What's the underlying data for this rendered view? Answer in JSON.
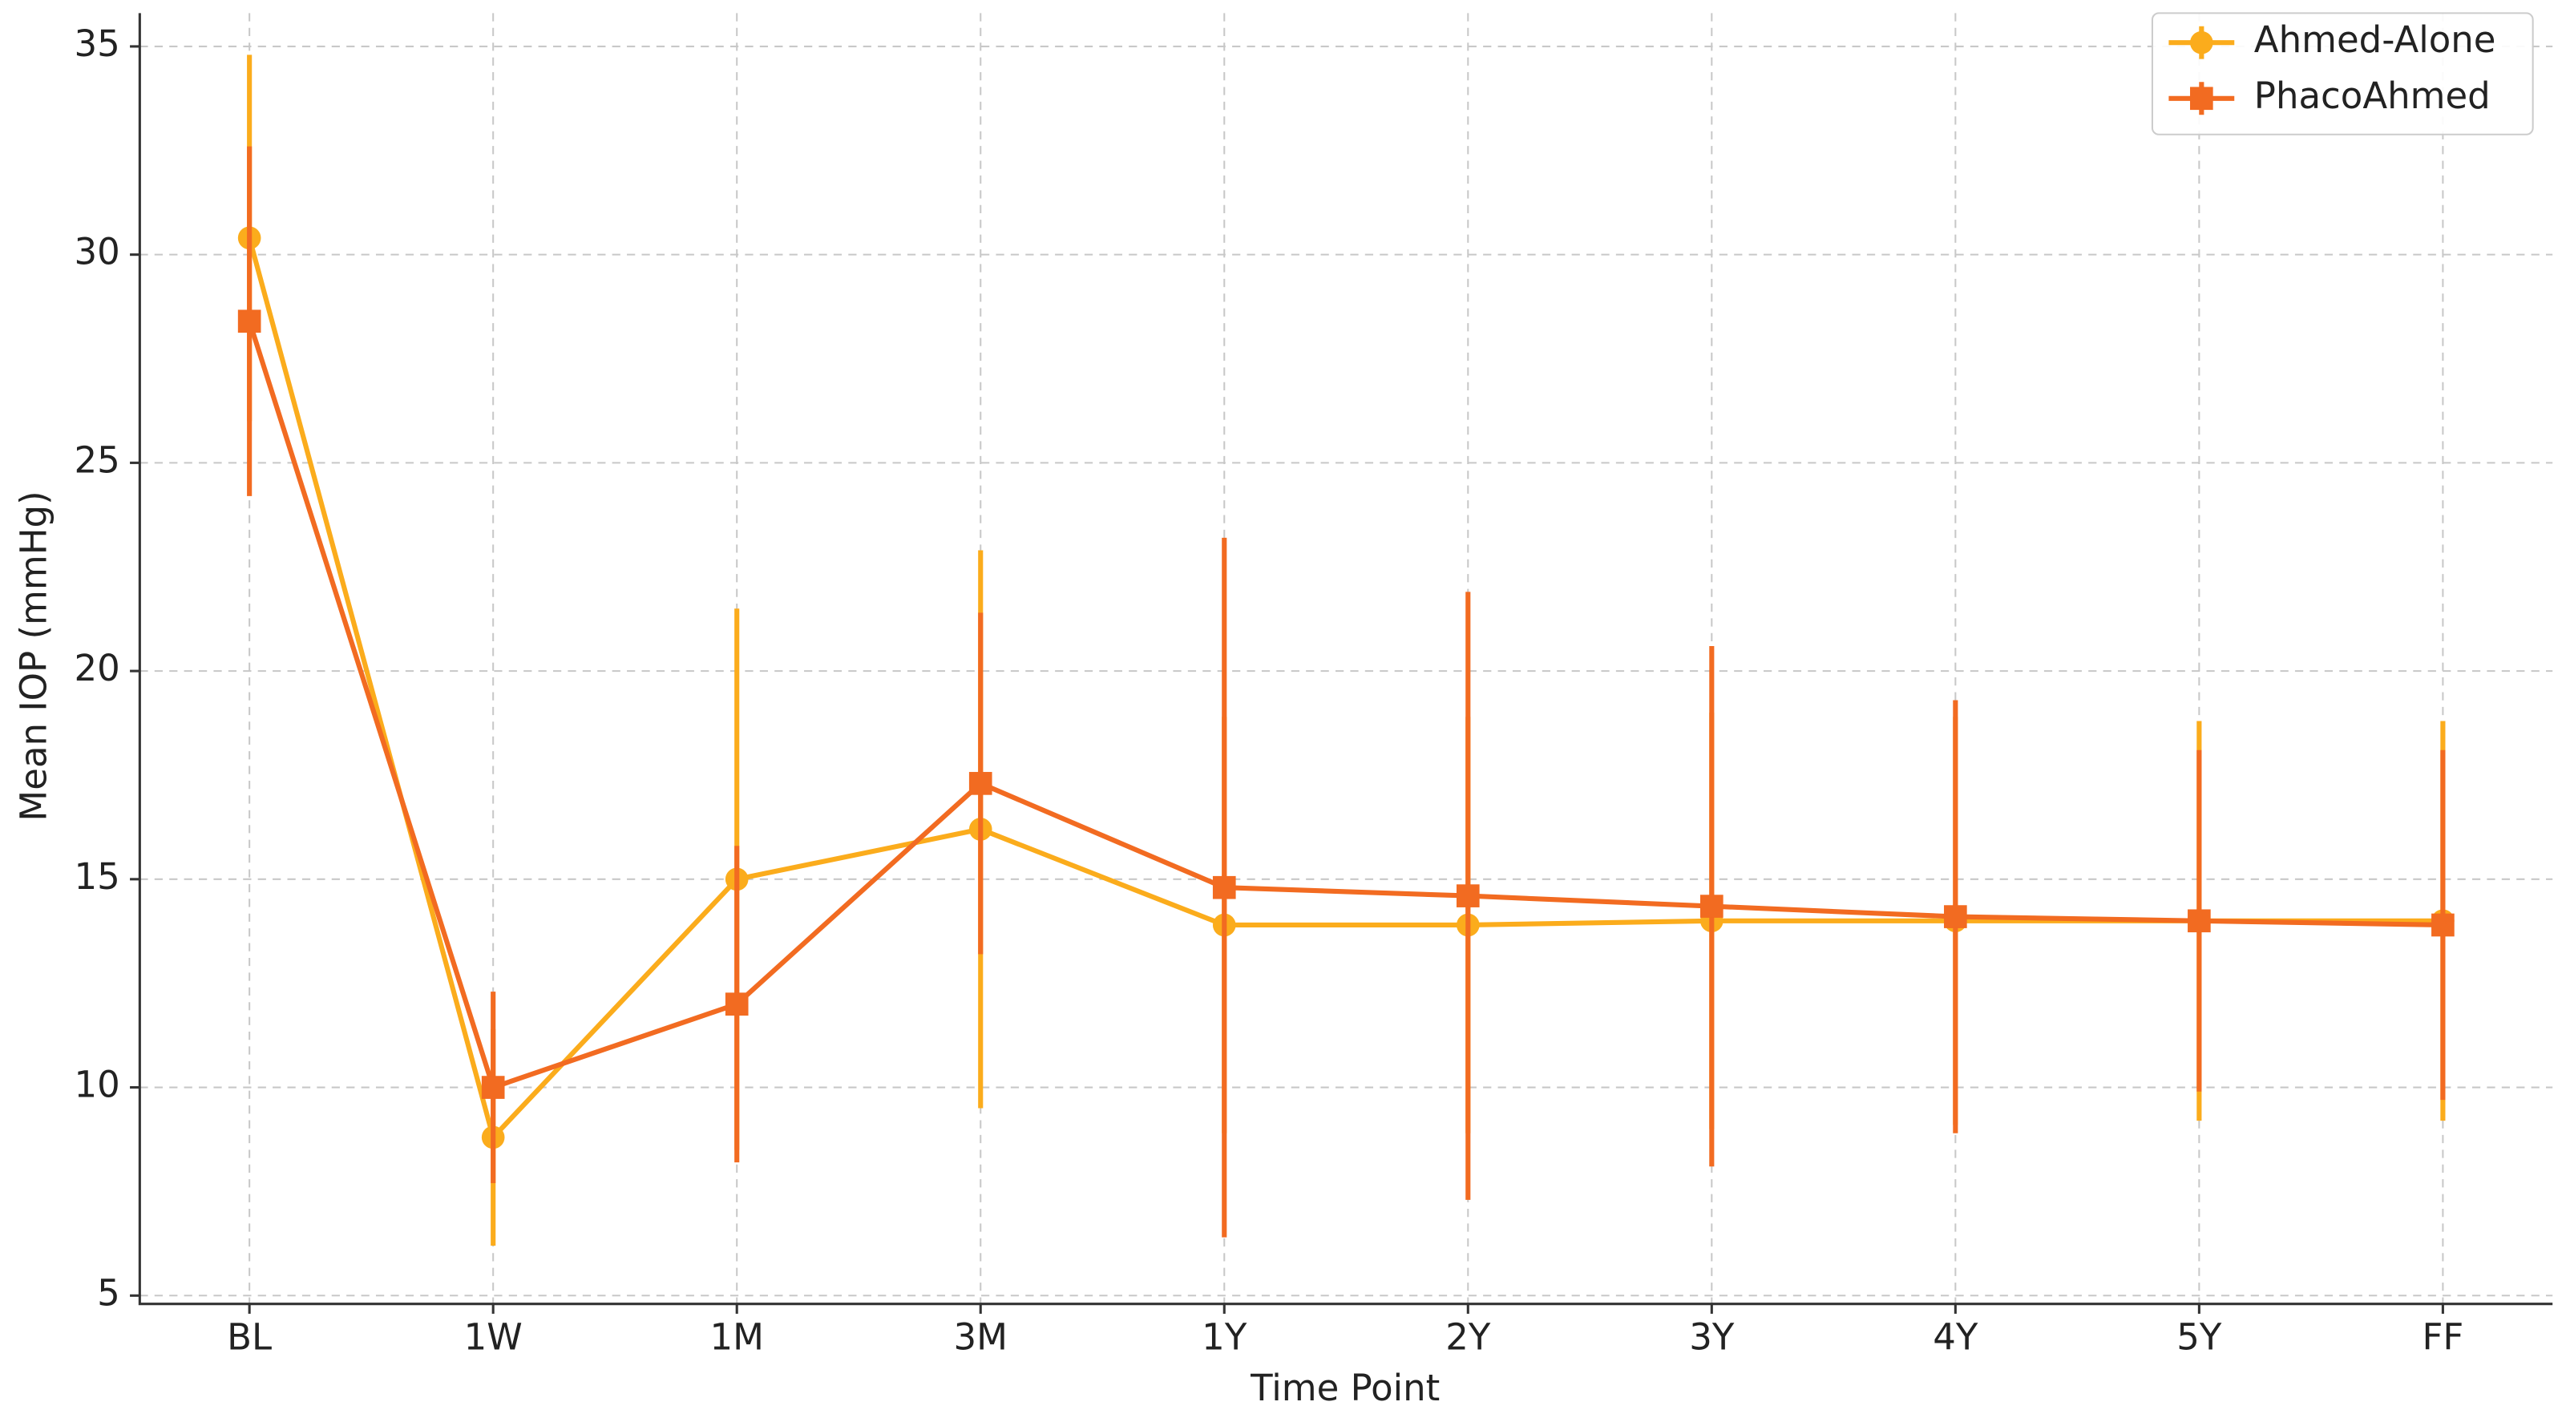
{
  "chart_data": {
    "type": "line",
    "x_label": "Time Point",
    "y_label": "Mean IOP (mmHg)",
    "categories": [
      "BL",
      "1W",
      "1M",
      "3M",
      "1Y",
      "2Y",
      "3Y",
      "4Y",
      "5Y",
      "FF"
    ],
    "series": [
      {
        "name": "Ahmed-Alone",
        "color": "#fbac1c",
        "marker": "circle",
        "values": [
          30.4,
          8.8,
          15.0,
          16.2,
          13.9,
          13.9,
          14.0,
          14.0,
          14.0,
          14.0
        ],
        "errors": [
          4.4,
          2.6,
          6.5,
          6.7,
          5.0,
          5.0,
          5.0,
          4.9,
          4.8,
          4.8
        ]
      },
      {
        "name": "PhacoAhmed",
        "color": "#f26b21",
        "marker": "square",
        "values": [
          28.4,
          10.0,
          12.0,
          17.3,
          14.8,
          14.6,
          14.35,
          14.1,
          14.0,
          13.9
        ],
        "errors": [
          4.2,
          2.3,
          3.8,
          4.1,
          8.4,
          7.3,
          6.25,
          5.2,
          4.1,
          4.2
        ]
      }
    ],
    "ylim": [
      4.8,
      35.8
    ],
    "yticks": [
      5,
      10,
      15,
      20,
      25,
      30,
      35
    ],
    "grid": true,
    "legend": "upper right"
  }
}
